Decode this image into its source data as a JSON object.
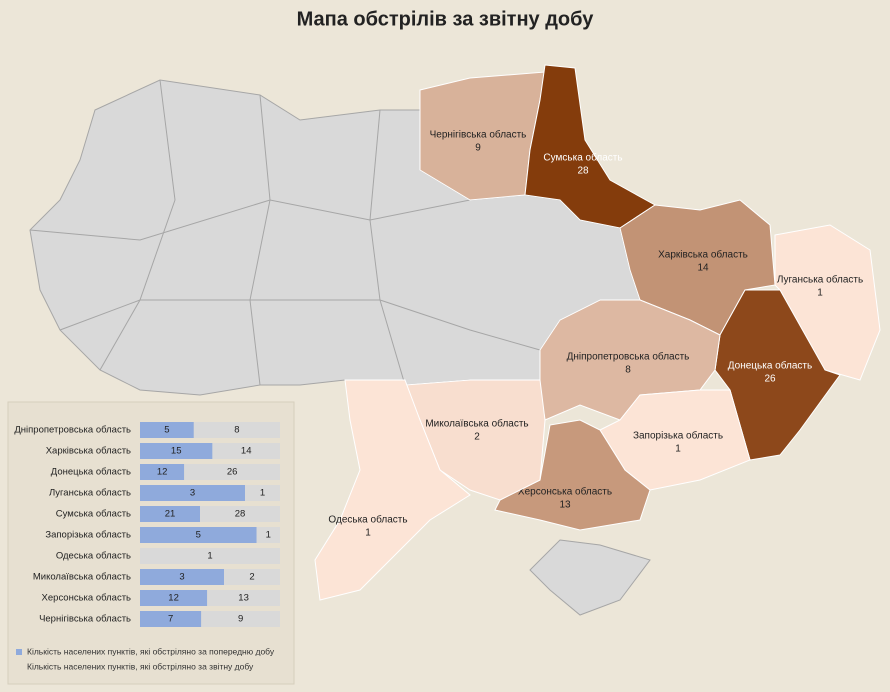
{
  "title": "Мапа обстрілів за звітну добу",
  "map": {
    "color_scale": [
      "#fce4d6",
      "#843c0c"
    ],
    "regions": [
      {
        "name": "Чернігівська область",
        "value": 9
      },
      {
        "name": "Сумська область",
        "value": 28
      },
      {
        "name": "Харківська область",
        "value": 14
      },
      {
        "name": "Луганська область",
        "value": 1
      },
      {
        "name": "Донецька область",
        "value": 26
      },
      {
        "name": "Дніпропетровська область",
        "value": 8
      },
      {
        "name": "Запорізька область",
        "value": 1
      },
      {
        "name": "Херсонська область",
        "value": 13
      },
      {
        "name": "Миколаївська область",
        "value": 2
      },
      {
        "name": "Одеська область",
        "value": 1
      }
    ]
  },
  "chart_data": {
    "type": "bar",
    "stacked_percent": true,
    "categories": [
      "Дніпропетровська область",
      "Харківська область",
      "Донецька область",
      "Луганська область",
      "Сумська область",
      "Запорізька область",
      "Одеська область",
      "Миколаївська область",
      "Херсонська область",
      "Чернігівська область"
    ],
    "series": [
      {
        "name": "Кількість населених пунктів, які обстріляно за попередню добу",
        "color": "#8faadc",
        "values": [
          5,
          15,
          12,
          3,
          21,
          5,
          null,
          3,
          12,
          7
        ]
      },
      {
        "name": "Кількість населених пунктів, які обстріляно за звітну добу",
        "color": "#d9d9d9",
        "values": [
          8,
          14,
          26,
          1,
          28,
          1,
          1,
          2,
          13,
          9
        ]
      }
    ]
  }
}
